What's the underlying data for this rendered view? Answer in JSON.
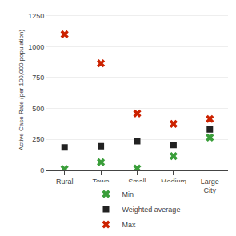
{
  "chart_data": {
    "type": "scatter",
    "categories": [
      "Rural",
      "Town",
      "Small\nCity",
      "Medium\nCity",
      "Large\nCity"
    ],
    "series": [
      {
        "name": "Min",
        "color": "#3a9e3a",
        "marker": "x",
        "values": [
          10,
          65,
          15,
          115,
          265
        ]
      },
      {
        "name": "Weighted average",
        "color": "#222222",
        "marker": "square",
        "values": [
          185,
          195,
          235,
          205,
          330
        ]
      },
      {
        "name": "Max",
        "color": "#cc2200",
        "marker": "x",
        "values": [
          1100,
          865,
          460,
          375,
          415
        ]
      }
    ],
    "y_label": "Active Case Rate (per 100,000 population)",
    "ylim": [
      0,
      1300
    ],
    "yticks": [
      0,
      250,
      500,
      750,
      1000,
      1250
    ],
    "grid": true,
    "legend": "bottom"
  }
}
